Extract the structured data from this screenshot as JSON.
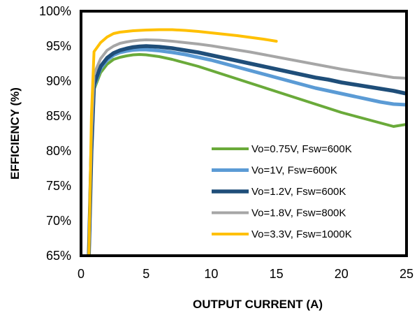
{
  "chart_data": {
    "type": "line",
    "xlabel": "OUTPUT CURRENT (A)",
    "ylabel": "EFFICIENCY (%)",
    "xlim": [
      0,
      25
    ],
    "ylim": [
      65,
      100
    ],
    "x_ticks": [
      0,
      5,
      10,
      15,
      20,
      25
    ],
    "y_ticks": [
      65,
      70,
      75,
      80,
      85,
      90,
      95,
      100
    ],
    "x_tick_labels": [
      "0",
      "5",
      "10",
      "15",
      "20",
      "25"
    ],
    "y_tick_labels": [
      "65%",
      "70%",
      "75%",
      "80%",
      "85%",
      "90%",
      "95%",
      "100%"
    ],
    "grid": false,
    "legend_position": "bottom-right",
    "series": [
      {
        "name": "Vo=0.75V, Fsw=600K",
        "color": "#6aaa3a",
        "points": [
          [
            0.6,
            65
          ],
          [
            0.8,
            80
          ],
          [
            1.0,
            88.8
          ],
          [
            1.5,
            91.2
          ],
          [
            2.0,
            92.4
          ],
          [
            2.5,
            93.1
          ],
          [
            3,
            93.4
          ],
          [
            3.5,
            93.6
          ],
          [
            4,
            93.75
          ],
          [
            4.5,
            93.8
          ],
          [
            5,
            93.75
          ],
          [
            6,
            93.5
          ],
          [
            7,
            93.1
          ],
          [
            8,
            92.6
          ],
          [
            9,
            92.1
          ],
          [
            10,
            91.5
          ],
          [
            11,
            90.9
          ],
          [
            12,
            90.3
          ],
          [
            13,
            89.7
          ],
          [
            14,
            89.1
          ],
          [
            15,
            88.5
          ],
          [
            16,
            87.9
          ],
          [
            17,
            87.3
          ],
          [
            18,
            86.7
          ],
          [
            19,
            86.1
          ],
          [
            20,
            85.5
          ],
          [
            21,
            85.0
          ],
          [
            22,
            84.5
          ],
          [
            23,
            84.0
          ],
          [
            24,
            83.5
          ],
          [
            25,
            83.8
          ]
        ]
      },
      {
        "name": "Vo=1V, Fsw=600K",
        "color": "#5b9bd5",
        "points": [
          [
            0.6,
            65
          ],
          [
            0.8,
            80
          ],
          [
            1.0,
            89.2
          ],
          [
            1.5,
            91.8
          ],
          [
            2.0,
            93.0
          ],
          [
            2.5,
            93.7
          ],
          [
            3,
            94.1
          ],
          [
            3.5,
            94.3
          ],
          [
            4,
            94.45
          ],
          [
            4.5,
            94.5
          ],
          [
            5,
            94.5
          ],
          [
            6,
            94.35
          ],
          [
            7,
            94.1
          ],
          [
            8,
            93.8
          ],
          [
            9,
            93.4
          ],
          [
            10,
            93.0
          ],
          [
            11,
            92.5
          ],
          [
            12,
            92.0
          ],
          [
            13,
            91.5
          ],
          [
            14,
            91.0
          ],
          [
            15,
            90.5
          ],
          [
            16,
            90.0
          ],
          [
            17,
            89.5
          ],
          [
            18,
            89.0
          ],
          [
            19,
            88.6
          ],
          [
            20,
            88.2
          ],
          [
            21,
            87.8
          ],
          [
            22,
            87.4
          ],
          [
            23,
            87.0
          ],
          [
            24,
            86.7
          ],
          [
            25,
            86.6
          ]
        ]
      },
      {
        "name": "Vo=1.2V, Fsw=600K",
        "color": "#1f4e79",
        "points": [
          [
            0.6,
            65
          ],
          [
            0.8,
            80
          ],
          [
            1.0,
            89.5
          ],
          [
            1.5,
            92.1
          ],
          [
            2.0,
            93.3
          ],
          [
            2.5,
            94.0
          ],
          [
            3,
            94.4
          ],
          [
            3.5,
            94.65
          ],
          [
            4,
            94.85
          ],
          [
            4.5,
            94.95
          ],
          [
            5,
            95.0
          ],
          [
            6,
            94.9
          ],
          [
            7,
            94.7
          ],
          [
            8,
            94.4
          ],
          [
            9,
            94.1
          ],
          [
            10,
            93.7
          ],
          [
            11,
            93.3
          ],
          [
            12,
            92.9
          ],
          [
            13,
            92.5
          ],
          [
            14,
            92.1
          ],
          [
            15,
            91.7
          ],
          [
            16,
            91.3
          ],
          [
            17,
            90.9
          ],
          [
            18,
            90.5
          ],
          [
            19,
            90.2
          ],
          [
            20,
            89.8
          ],
          [
            21,
            89.5
          ],
          [
            22,
            89.2
          ],
          [
            23,
            88.9
          ],
          [
            24,
            88.6
          ],
          [
            25,
            88.2
          ]
        ]
      },
      {
        "name": "Vo=1.8V, Fsw=800K",
        "color": "#a6a6a6",
        "points": [
          [
            0.6,
            65
          ],
          [
            0.8,
            82
          ],
          [
            1.0,
            91.0
          ],
          [
            1.5,
            93.2
          ],
          [
            2.0,
            94.4
          ],
          [
            2.5,
            95.0
          ],
          [
            3,
            95.4
          ],
          [
            3.5,
            95.6
          ],
          [
            4,
            95.75
          ],
          [
            4.5,
            95.85
          ],
          [
            5,
            95.9
          ],
          [
            6,
            95.85
          ],
          [
            7,
            95.7
          ],
          [
            8,
            95.5
          ],
          [
            9,
            95.3
          ],
          [
            10,
            95.05
          ],
          [
            11,
            94.75
          ],
          [
            12,
            94.45
          ],
          [
            13,
            94.15
          ],
          [
            14,
            93.8
          ],
          [
            15,
            93.45
          ],
          [
            16,
            93.1
          ],
          [
            17,
            92.75
          ],
          [
            18,
            92.4
          ],
          [
            19,
            92.05
          ],
          [
            20,
            91.7
          ],
          [
            21,
            91.4
          ],
          [
            22,
            91.1
          ],
          [
            23,
            90.8
          ],
          [
            24,
            90.5
          ],
          [
            25,
            90.4
          ]
        ]
      },
      {
        "name": "Vo=3.3V, Fsw=1000K",
        "color": "#ffc000",
        "points": [
          [
            0.6,
            65
          ],
          [
            0.8,
            85
          ],
          [
            1.0,
            94.2
          ],
          [
            1.5,
            95.5
          ],
          [
            2.0,
            96.3
          ],
          [
            2.5,
            96.8
          ],
          [
            3,
            97.0
          ],
          [
            3.5,
            97.1
          ],
          [
            4,
            97.2
          ],
          [
            5,
            97.3
          ],
          [
            6,
            97.35
          ],
          [
            7,
            97.35
          ],
          [
            8,
            97.25
          ],
          [
            9,
            97.1
          ],
          [
            10,
            96.9
          ],
          [
            11,
            96.7
          ],
          [
            12,
            96.5
          ],
          [
            13,
            96.25
          ],
          [
            14,
            96.0
          ],
          [
            15,
            95.7
          ]
        ]
      }
    ]
  }
}
